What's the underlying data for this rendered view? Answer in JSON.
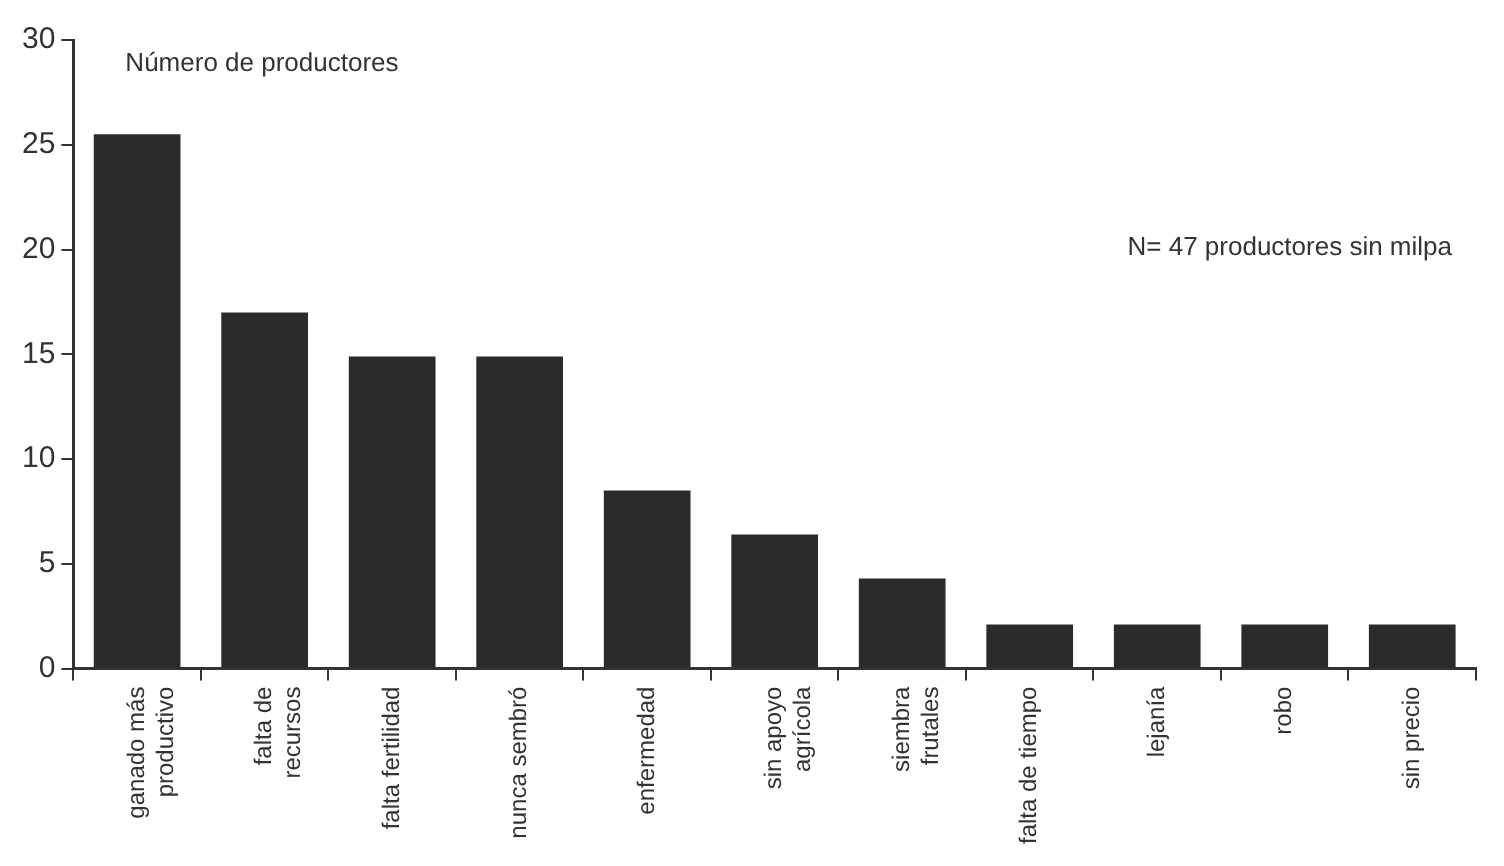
{
  "chart_data": {
    "type": "bar",
    "ylabel": "Número de productores",
    "annotations": [
      "N= 47 productores sin milpa"
    ],
    "categories": [
      "ganado más\nproductivo",
      "falta de\nrecursos",
      "falta fertilidad",
      "nunca sembró",
      "enfermedad",
      "sin apoyo\nagrícola",
      "siembra\nfrutales",
      "falta de tiempo",
      "lejanía",
      "robo",
      "sin precio"
    ],
    "values": [
      25.5,
      17.0,
      14.9,
      14.9,
      8.5,
      6.4,
      4.3,
      2.1,
      2.1,
      2.1,
      2.1
    ],
    "color": "#2b2b2b",
    "ylim": [
      0,
      30
    ],
    "yticks": [
      0,
      5,
      10,
      15,
      20,
      25,
      30
    ],
    "grid": false,
    "legend": false
  }
}
